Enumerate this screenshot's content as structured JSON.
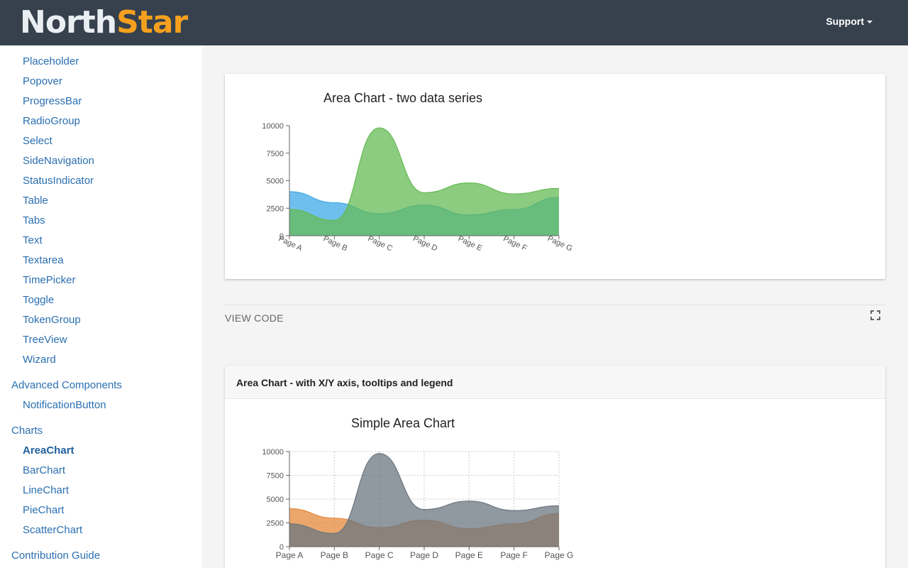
{
  "header": {
    "logo_part1": "North",
    "logo_part2": "Star",
    "support_label": "Support"
  },
  "sidebar": {
    "items_top": [
      "Placeholder",
      "Popover",
      "ProgressBar",
      "RadioGroup",
      "Select",
      "SideNavigation",
      "StatusIndicator",
      "Table",
      "Tabs",
      "Text",
      "Textarea",
      "TimePicker",
      "Toggle",
      "TokenGroup",
      "TreeView",
      "Wizard"
    ],
    "group_advanced": "Advanced Components",
    "items_advanced": [
      "NotificationButton"
    ],
    "group_charts": "Charts",
    "items_charts": [
      "AreaChart",
      "BarChart",
      "LineChart",
      "PieChart",
      "ScatterChart"
    ],
    "active_item": "AreaChart",
    "group_contribution": "Contribution Guide"
  },
  "main": {
    "view_code_label": "VIEW CODE",
    "card2_header": "Area Chart - with X/Y axis, tooltips and legend"
  },
  "chart_data": [
    {
      "type": "area",
      "title": "Area Chart - two data series",
      "categories": [
        "Page A",
        "Page B",
        "Page C",
        "Page D",
        "Page E",
        "Page F",
        "Page G"
      ],
      "series": [
        {
          "values": [
            4000,
            3000,
            2000,
            2780,
            1890,
            2390,
            3490
          ],
          "color": "#3fa9e8"
        },
        {
          "values": [
            2400,
            1398,
            9800,
            3908,
            4800,
            3800,
            4300
          ],
          "color": "#66bb55"
        }
      ],
      "yticks": [
        0,
        2500,
        5000,
        7500,
        10000
      ],
      "ylim": [
        0,
        10000
      ],
      "grid": false,
      "rotated_xticks": true
    },
    {
      "type": "area",
      "title": "Simple Area Chart",
      "categories": [
        "Page A",
        "Page B",
        "Page C",
        "Page D",
        "Page E",
        "Page F",
        "Page G"
      ],
      "series": [
        {
          "values": [
            4000,
            3000,
            2000,
            2780,
            1890,
            2390,
            3490
          ],
          "color": "#e48a3a"
        },
        {
          "values": [
            2400,
            1398,
            9800,
            3908,
            4800,
            3800,
            4300
          ],
          "color": "#6b7680"
        }
      ],
      "yticks": [
        0,
        2500,
        5000,
        7500,
        10000
      ],
      "ylim": [
        0,
        10000
      ],
      "grid": true,
      "rotated_xticks": false
    }
  ]
}
